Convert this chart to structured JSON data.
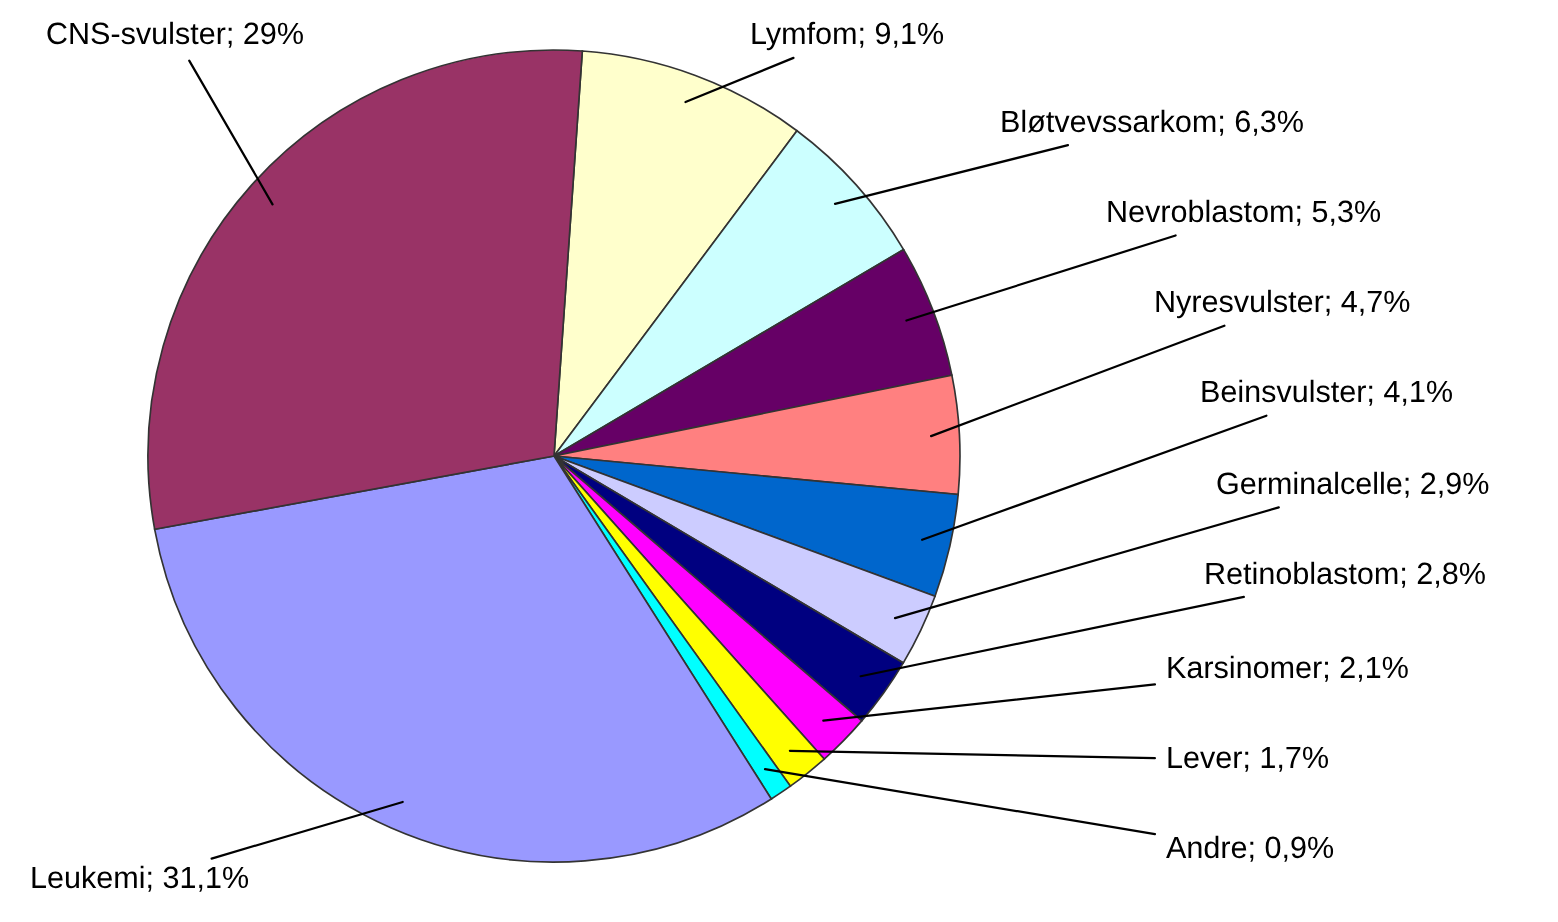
{
  "chart_data": {
    "type": "pie",
    "categories": [
      "Lymfom",
      "Bløtvevssarkom",
      "Nevroblastom",
      "Nyresvulster",
      "Beinsvulster",
      "Germinalcelle",
      "Retinoblastom",
      "Karsinomer",
      "Lever",
      "Andre",
      "Leukemi",
      "CNS-svulster"
    ],
    "values": [
      9.1,
      6.3,
      5.3,
      4.7,
      4.1,
      2.9,
      2.8,
      2.1,
      1.7,
      0.9,
      31.1,
      29
    ],
    "value_labels": [
      "9,1%",
      "6,3%",
      "5,3%",
      "4,7%",
      "4,1%",
      "2,9%",
      "2,8%",
      "2,1%",
      "1,7%",
      "0,9%",
      "31,1%",
      "29%"
    ],
    "colors": [
      "#ffffcc",
      "#ccffff",
      "#660066",
      "#ff8080",
      "#0066cc",
      "#ccccff",
      "#000080",
      "#ff00ff",
      "#ffff00",
      "#00ffff",
      "#9999ff",
      "#993366"
    ],
    "legend": false
  }
}
